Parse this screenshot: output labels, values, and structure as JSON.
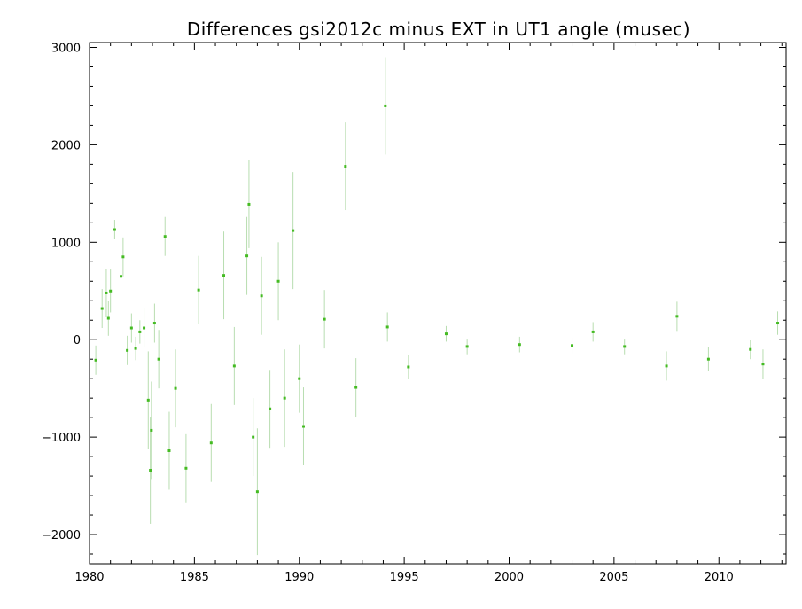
{
  "chart_data": {
    "type": "scatter",
    "title": "Differences gsi2012c minus EXT in UT1 angle   (musec)",
    "xlabel": "",
    "ylabel": "",
    "xlim": [
      1980,
      2013.2
    ],
    "ylim": [
      -2300,
      3050
    ],
    "x_ticks": [
      1980,
      1985,
      1990,
      1995,
      2000,
      2005,
      2010
    ],
    "y_ticks": [
      -2000,
      -1000,
      0,
      1000,
      2000,
      3000
    ],
    "y_tick_labels": [
      "−2000",
      "−1000",
      "0",
      "1000",
      "2000",
      "3000"
    ],
    "grid": false,
    "legend": "none",
    "colors": {
      "points": "#44bb22",
      "error_bars": "#b8ddb0",
      "axes": "#000000"
    },
    "series": [
      {
        "points": [
          [
            1980.3,
            -210,
            150
          ],
          [
            1980.6,
            320,
            200
          ],
          [
            1980.8,
            480,
            250
          ],
          [
            1980.9,
            220,
            180
          ],
          [
            1981.0,
            500,
            220
          ],
          [
            1981.2,
            1130,
            100
          ],
          [
            1981.5,
            650,
            200
          ],
          [
            1981.6,
            850,
            200
          ],
          [
            1981.8,
            -110,
            150
          ],
          [
            1982.0,
            120,
            150
          ],
          [
            1982.2,
            -90,
            120
          ],
          [
            1982.4,
            80,
            120
          ],
          [
            1982.6,
            120,
            200
          ],
          [
            1982.8,
            -620,
            500
          ],
          [
            1982.9,
            -1340,
            550
          ],
          [
            1982.95,
            -930,
            500
          ],
          [
            1983.1,
            170,
            200
          ],
          [
            1983.3,
            -200,
            300
          ],
          [
            1983.6,
            1060,
            200
          ],
          [
            1983.8,
            -1140,
            400
          ],
          [
            1984.1,
            -500,
            400
          ],
          [
            1984.6,
            -1320,
            350
          ],
          [
            1985.2,
            510,
            350
          ],
          [
            1985.8,
            -1060,
            400
          ],
          [
            1986.4,
            660,
            450
          ],
          [
            1986.9,
            -270,
            400
          ],
          [
            1987.5,
            860,
            400
          ],
          [
            1987.6,
            1390,
            450
          ],
          [
            1987.8,
            -1000,
            400
          ],
          [
            1988.0,
            -1560,
            650
          ],
          [
            1988.2,
            450,
            400
          ],
          [
            1988.6,
            -710,
            400
          ],
          [
            1989.0,
            600,
            400
          ],
          [
            1989.3,
            -600,
            500
          ],
          [
            1989.7,
            1120,
            600
          ],
          [
            1990.0,
            -400,
            350
          ],
          [
            1990.2,
            -890,
            400
          ],
          [
            1991.2,
            210,
            300
          ],
          [
            1992.2,
            1780,
            450
          ],
          [
            1992.7,
            -490,
            300
          ],
          [
            1994.1,
            2400,
            500
          ],
          [
            1994.2,
            130,
            150
          ],
          [
            1995.2,
            -280,
            120
          ],
          [
            1997.0,
            60,
            80
          ],
          [
            1998.0,
            -70,
            80
          ],
          [
            2000.5,
            -50,
            80
          ],
          [
            2003.0,
            -60,
            80
          ],
          [
            2004.0,
            80,
            100
          ],
          [
            2005.5,
            -70,
            80
          ],
          [
            2007.5,
            -270,
            150
          ],
          [
            2008.0,
            240,
            150
          ],
          [
            2009.5,
            -200,
            120
          ],
          [
            2011.5,
            -100,
            100
          ],
          [
            2012.1,
            -250,
            150
          ],
          [
            2012.8,
            170,
            120
          ]
        ]
      }
    ]
  }
}
